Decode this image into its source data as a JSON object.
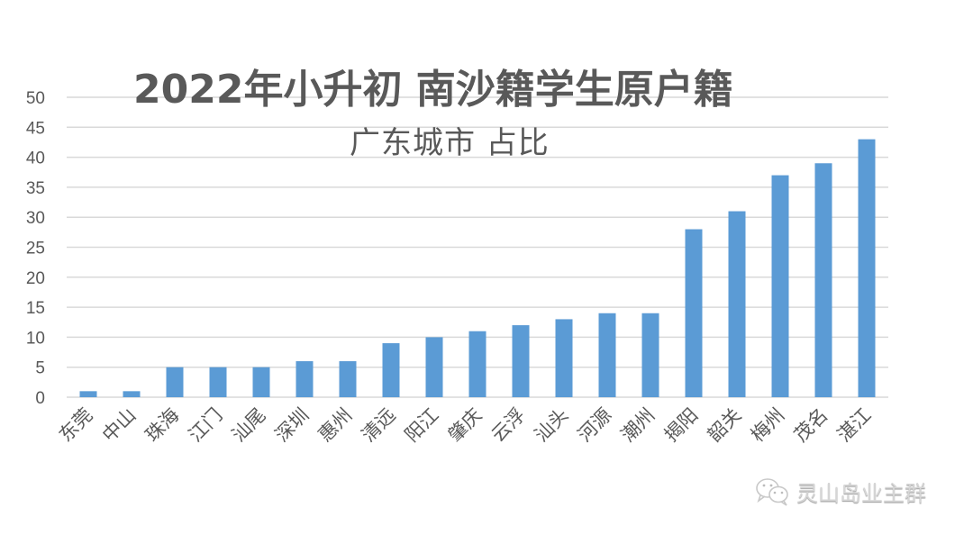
{
  "chart_data": {
    "type": "bar",
    "title": "2022年小升初  南沙籍学生原户籍",
    "subtitle": "广东城市 占比",
    "xlabel": "",
    "ylabel": "",
    "ylim": [
      0,
      50
    ],
    "yticks": [
      0,
      5,
      10,
      15,
      20,
      25,
      30,
      35,
      40,
      45,
      50
    ],
    "grid": true,
    "legend": "none",
    "bar_color": "#5B9BD5",
    "categories": [
      "东莞",
      "中山",
      "珠海",
      "江门",
      "汕尾",
      "深圳",
      "惠州",
      "清远",
      "阳江",
      "肇庆",
      "云浮",
      "汕头",
      "河源",
      "潮州",
      "揭阳",
      "韶关",
      "梅州",
      "茂名",
      "湛江"
    ],
    "values": [
      1,
      1,
      5,
      5,
      5,
      6,
      6,
      9,
      10,
      11,
      12,
      13,
      14,
      14,
      28,
      31,
      37,
      39,
      43
    ]
  },
  "watermark": {
    "icon": "wechat-icon",
    "text": "灵山岛业主群"
  },
  "colors": {
    "text": "#595959",
    "grid": "#D9D9D9",
    "bar": "#5B9BD5"
  }
}
